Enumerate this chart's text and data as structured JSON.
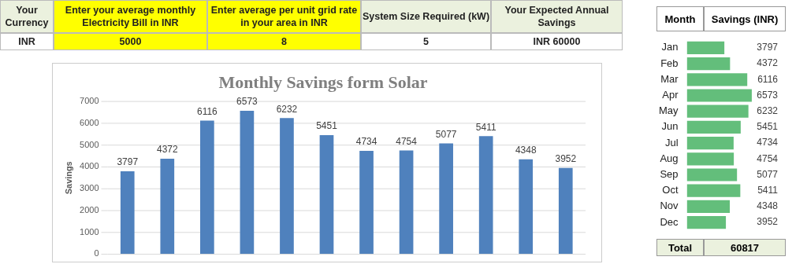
{
  "chart_data": [
    {
      "type": "other",
      "annotations": [
        "Your Currency",
        "Enter your average monthly Electricity  Bill in INR",
        "Enter average per unit grid rate in your area in INR",
        "System Size Required (kW)",
        "Your Expected Annual Savings",
        "INR",
        "5000",
        "8",
        "5",
        "INR 60000"
      ]
    },
    {
      "type": "bar",
      "title": "Monthly Savings form Solar",
      "ylabel": "Savings",
      "categories": [
        null,
        null,
        null,
        null,
        null,
        null,
        null,
        null,
        null,
        null,
        null,
        null
      ],
      "values": [
        3797,
        4372,
        6116,
        6573,
        6232,
        5451,
        4734,
        4754,
        5077,
        5411,
        4348,
        3952
      ],
      "color": "#4f81bd",
      "ylim": [
        0,
        7000
      ],
      "yticks": [
        0,
        1000,
        2000,
        3000,
        4000,
        5000,
        6000,
        7000
      ],
      "grid": "y",
      "data_labels": true
    },
    {
      "type": "bar",
      "orientation": "horizontal",
      "ylabel": "Month",
      "xlabel": "Savings (INR)",
      "categories": [
        "Jan",
        "Feb",
        "Mar",
        "Apr",
        "May",
        "Jun",
        "Jul",
        "Aug",
        "Sep",
        "Oct",
        "Nov",
        "Dec"
      ],
      "values": [
        3797,
        4372,
        6116,
        6573,
        6232,
        5451,
        4734,
        4754,
        5077,
        5411,
        4348,
        3952
      ],
      "color": "#63be7b",
      "data_labels": true,
      "annotations": [
        "Total",
        "60817"
      ]
    }
  ]
}
